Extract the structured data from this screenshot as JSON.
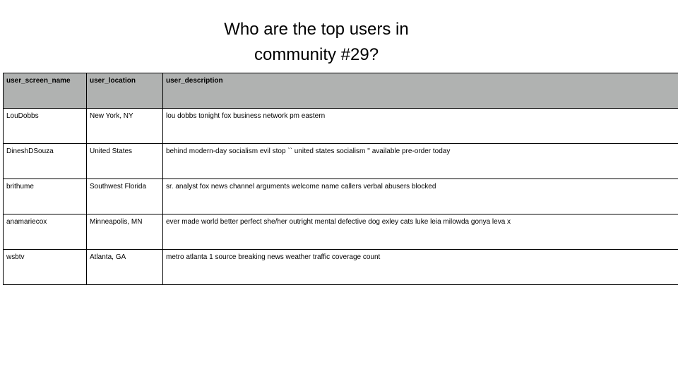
{
  "slide": {
    "title_line1": "Who are the top users in",
    "title_line2": "community #29?"
  },
  "table": {
    "header_bg": "#b0b2b1",
    "columns": [
      "user_screen_name",
      "user_location",
      "user_description"
    ],
    "rows": [
      [
        "LouDobbs",
        "New York, NY",
        "lou dobbs tonight fox business network pm eastern"
      ],
      [
        "DineshDSouza",
        "United States",
        "behind modern-day socialism evil stop `` united states socialism '' available pre-order today"
      ],
      [
        "brithume",
        "Southwest Florida",
        "sr. analyst fox news channel arguments welcome name callers verbal abusers blocked"
      ],
      [
        "anamariecox",
        "Minneapolis, MN",
        "ever made world better perfect she/her outright mental defective dog exley cats luke leia milowda gonya leva x"
      ],
      [
        "wsbtv",
        "Atlanta, GA",
        "metro atlanta 1 source breaking news weather traffic coverage count"
      ]
    ]
  }
}
